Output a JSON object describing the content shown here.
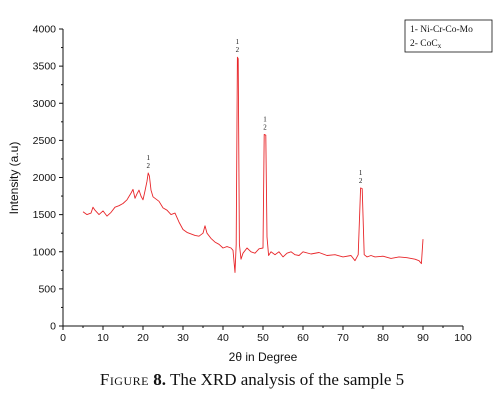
{
  "chart_data": {
    "type": "line",
    "title": "",
    "xlabel": "2θ in Degree",
    "ylabel": "Intensity (a.u)",
    "xlim": [
      0,
      100
    ],
    "ylim": [
      0,
      4000
    ],
    "xticks": [
      "0",
      "10",
      "20",
      "30",
      "40",
      "50",
      "60",
      "70",
      "80",
      "90",
      "100"
    ],
    "yticks": [
      "0",
      "500",
      "1000",
      "1500",
      "2000",
      "2500",
      "3000",
      "3500",
      "4000"
    ],
    "grid": false,
    "legend_position": "top-right",
    "legend": [
      {
        "id": "1",
        "label": "1- Ni-Cr-Co-Mo"
      },
      {
        "id": "2",
        "label": "2- CoC",
        "subscript": "x"
      }
    ],
    "series": [
      {
        "color": "#e8262a",
        "x": [
          5,
          6,
          7,
          7.5,
          8,
          9,
          10,
          11,
          12,
          13,
          14,
          15,
          16,
          17,
          17.5,
          18,
          18.5,
          19,
          19.5,
          20,
          20.5,
          21,
          21.3,
          21.6,
          22,
          22.5,
          23,
          24,
          25,
          26,
          27,
          28,
          29,
          30,
          31,
          32,
          33,
          34,
          35,
          35.5,
          36,
          37,
          38,
          39,
          40,
          41,
          42,
          42.5,
          43,
          43.3,
          43.6,
          43.8,
          44.1,
          44.5,
          45,
          46,
          47,
          48,
          49,
          50,
          50.3,
          50.7,
          51,
          51.4,
          52,
          53,
          54,
          55,
          56,
          57,
          58,
          59,
          60,
          62,
          64,
          66,
          68,
          70,
          72,
          73,
          73.8,
          74.4,
          74.8,
          75.3,
          76,
          77,
          78,
          80,
          82,
          84,
          86,
          88,
          89,
          89.6,
          90
        ],
        "y": [
          1540,
          1500,
          1520,
          1600,
          1560,
          1500,
          1550,
          1480,
          1530,
          1600,
          1620,
          1650,
          1700,
          1790,
          1840,
          1720,
          1780,
          1830,
          1750,
          1700,
          1820,
          1950,
          2060,
          2020,
          1830,
          1740,
          1720,
          1680,
          1590,
          1560,
          1500,
          1520,
          1400,
          1300,
          1260,
          1240,
          1220,
          1210,
          1250,
          1350,
          1250,
          1180,
          1130,
          1100,
          1050,
          1070,
          1050,
          1020,
          720,
          1100,
          3620,
          3600,
          1100,
          900,
          980,
          1050,
          1000,
          980,
          1040,
          1050,
          2580,
          2570,
          1200,
          950,
          1000,
          960,
          1000,
          930,
          980,
          1000,
          960,
          950,
          1000,
          970,
          990,
          950,
          960,
          930,
          950,
          880,
          960,
          1860,
          1850,
          960,
          930,
          950,
          930,
          940,
          910,
          930,
          920,
          900,
          880,
          840,
          1170
        ]
      }
    ],
    "annotations": [
      {
        "x": 21.3,
        "y": 2060,
        "line1": "1",
        "line2": "2"
      },
      {
        "x": 43.6,
        "y": 3620,
        "line1": "1",
        "line2": "2"
      },
      {
        "x": 50.5,
        "y": 2580,
        "line1": "1",
        "line2": "2"
      },
      {
        "x": 74.4,
        "y": 1860,
        "line1": "1",
        "line2": "2"
      }
    ]
  },
  "caption": {
    "prefix": "Figure",
    "number": "8.",
    "text": "The XRD analysis of the sample 5"
  }
}
